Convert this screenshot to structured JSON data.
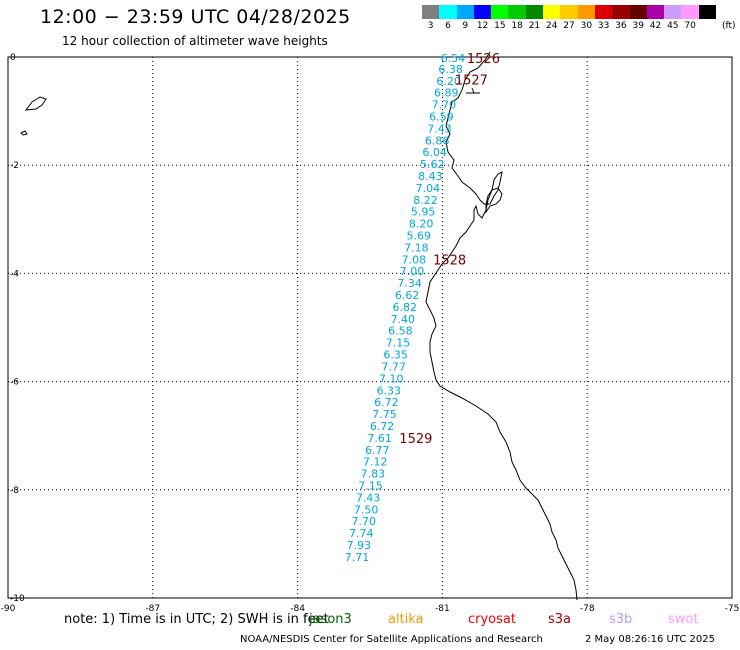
{
  "header": {
    "title": "12:00 − 23:59 UTC 04/28/2025",
    "subtitle": "12 hour collection of altimeter wave heights"
  },
  "legend": {
    "unit": "(ft)",
    "bins": [
      {
        "label": "3",
        "color": "#7f7f7f"
      },
      {
        "label": "6",
        "color": "#00ffff"
      },
      {
        "label": "9",
        "color": "#00a8ff"
      },
      {
        "label": "12",
        "color": "#0000ff"
      },
      {
        "label": "15",
        "color": "#00ff00"
      },
      {
        "label": "18",
        "color": "#00cc00"
      },
      {
        "label": "21",
        "color": "#008800"
      },
      {
        "label": "24",
        "color": "#ffff00"
      },
      {
        "label": "27",
        "color": "#ffcc00"
      },
      {
        "label": "30",
        "color": "#ff9900"
      },
      {
        "label": "33",
        "color": "#dd0000"
      },
      {
        "label": "36",
        "color": "#990000"
      },
      {
        "label": "39",
        "color": "#660000"
      },
      {
        "label": "42",
        "color": "#aa00aa"
      },
      {
        "label": "45",
        "color": "#cc99ff"
      },
      {
        "label": "70",
        "color": "#ff99ff"
      },
      {
        "label": "",
        "color": "#000000"
      }
    ]
  },
  "map": {
    "lon_range": [
      -90,
      -75
    ],
    "lat_range": [
      -10,
      0
    ],
    "x_ticks": [
      "-90",
      "-87",
      "-84",
      "-81",
      "-78",
      "-75"
    ],
    "y_ticks": [
      "0",
      "-2",
      "-4",
      "-6",
      "-8",
      "-10"
    ],
    "track_color": "#00a8e0",
    "time_color": "#7a0000",
    "track": [
      {
        "lat": -0.02,
        "lon": -80.78,
        "v": "6.54"
      },
      {
        "lat": -0.22,
        "lon": -80.83,
        "v": "6.38"
      },
      {
        "lat": -0.44,
        "lon": -80.87,
        "v": "6.20"
      },
      {
        "lat": -0.66,
        "lon": -80.92,
        "v": "6.89"
      },
      {
        "lat": -0.88,
        "lon": -80.97,
        "v": "7.70"
      },
      {
        "lat": -1.1,
        "lon": -81.02,
        "v": "6.59"
      },
      {
        "lat": -1.32,
        "lon": -81.06,
        "v": "7.43"
      },
      {
        "lat": -1.54,
        "lon": -81.11,
        "v": "6.86"
      },
      {
        "lat": -1.76,
        "lon": -81.16,
        "v": "6.04"
      },
      {
        "lat": -1.98,
        "lon": -81.21,
        "v": "5.62"
      },
      {
        "lat": -2.2,
        "lon": -81.25,
        "v": "8.43"
      },
      {
        "lat": -2.42,
        "lon": -81.3,
        "v": "7.04"
      },
      {
        "lat": -2.64,
        "lon": -81.35,
        "v": "8.22"
      },
      {
        "lat": -2.86,
        "lon": -81.4,
        "v": "5.95"
      },
      {
        "lat": -3.08,
        "lon": -81.44,
        "v": "8.20"
      },
      {
        "lat": -3.3,
        "lon": -81.49,
        "v": "5.69"
      },
      {
        "lat": -3.52,
        "lon": -81.54,
        "v": "7.18"
      },
      {
        "lat": -3.74,
        "lon": -81.59,
        "v": "7.08"
      },
      {
        "lat": -3.96,
        "lon": -81.63,
        "v": "7.00"
      },
      {
        "lat": -4.18,
        "lon": -81.68,
        "v": "7.34"
      },
      {
        "lat": -4.4,
        "lon": -81.73,
        "v": "6.62"
      },
      {
        "lat": -4.62,
        "lon": -81.78,
        "v": "6.82"
      },
      {
        "lat": -4.84,
        "lon": -81.82,
        "v": "7.40"
      },
      {
        "lat": -5.06,
        "lon": -81.87,
        "v": "6.58"
      },
      {
        "lat": -5.28,
        "lon": -81.92,
        "v": "7.15"
      },
      {
        "lat": -5.5,
        "lon": -81.97,
        "v": "6.35"
      },
      {
        "lat": -5.72,
        "lon": -82.01,
        "v": "7.77"
      },
      {
        "lat": -5.94,
        "lon": -82.06,
        "v": "7.10"
      },
      {
        "lat": -6.16,
        "lon": -82.11,
        "v": "6.33"
      },
      {
        "lat": -6.38,
        "lon": -82.16,
        "v": "6.72"
      },
      {
        "lat": -6.6,
        "lon": -82.2,
        "v": "7.75"
      },
      {
        "lat": -6.82,
        "lon": -82.25,
        "v": "6.72"
      },
      {
        "lat": -7.04,
        "lon": -82.3,
        "v": "7.61"
      },
      {
        "lat": -7.26,
        "lon": -82.35,
        "v": "6.77"
      },
      {
        "lat": -7.48,
        "lon": -82.39,
        "v": "7.12"
      },
      {
        "lat": -7.7,
        "lon": -82.44,
        "v": "7.83"
      },
      {
        "lat": -7.92,
        "lon": -82.49,
        "v": "7.15"
      },
      {
        "lat": -8.14,
        "lon": -82.54,
        "v": "7.43"
      },
      {
        "lat": -8.36,
        "lon": -82.58,
        "v": "7.50"
      },
      {
        "lat": -8.58,
        "lon": -82.63,
        "v": "7.70"
      },
      {
        "lat": -8.8,
        "lon": -82.68,
        "v": "7.74"
      },
      {
        "lat": -9.02,
        "lon": -82.73,
        "v": "7.93"
      },
      {
        "lat": -9.24,
        "lon": -82.77,
        "v": "7.71"
      }
    ],
    "times": [
      {
        "lat": -0.02,
        "lon": -80.15,
        "t": "1526"
      },
      {
        "lat": -0.42,
        "lon": -80.4,
        "t": "1527"
      },
      {
        "lat": -3.74,
        "lon": -80.85,
        "t": "1528"
      },
      {
        "lat": -7.04,
        "lon": -81.55,
        "t": "1529"
      }
    ]
  },
  "footer": {
    "note": "note:  1) Time is in UTC;  2) SWH is in feet",
    "satellites": [
      {
        "name": "jason3",
        "color": "#006600"
      },
      {
        "name": "altika",
        "color": "#ff9900"
      },
      {
        "name": "cryosat",
        "color": "#ee0000"
      },
      {
        "name": "s3a",
        "color": "#990000"
      },
      {
        "name": "s3b",
        "color": "#bb99ff"
      },
      {
        "name": "swot",
        "color": "#ff99ff"
      }
    ],
    "credit": "NOAA/NESDIS Center for Satellite Applications and Research",
    "generated": "2 May 08:26:16 UTC 2025"
  }
}
